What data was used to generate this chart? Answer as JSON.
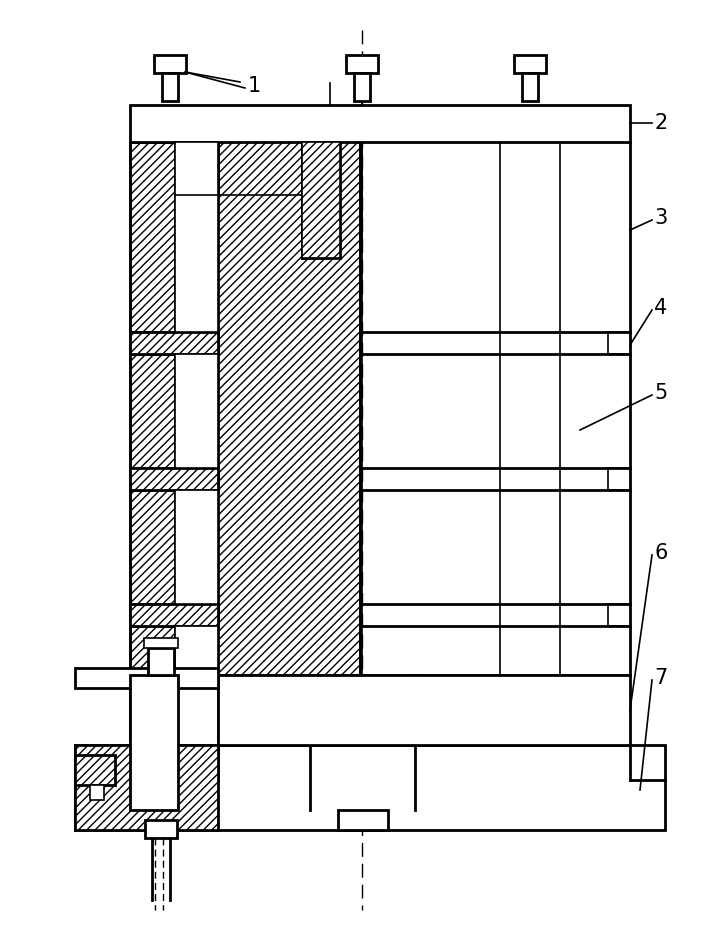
{
  "bg_color": "#ffffff",
  "line_color": "#000000",
  "lw_thin": 1.2,
  "lw_main": 2.0,
  "label_fontsize": 15,
  "figsize": [
    7.2,
    9.38
  ],
  "dpi": 100
}
